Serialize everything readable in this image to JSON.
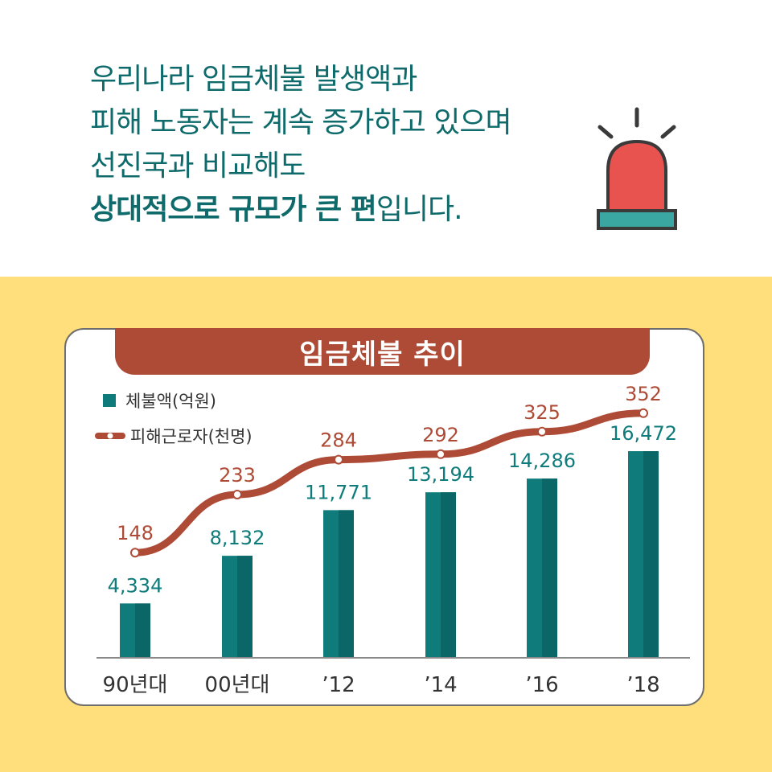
{
  "headline": {
    "line1": "우리나라 임금체불 발생액과",
    "line2": "피해 노동자는 계속 증가하고 있으며",
    "line3": "선진국과 비교해도",
    "line4_bold": "상대적으로 규모가 큰 편",
    "line4_rest": "입니다."
  },
  "icons": {
    "siren": "siren-icon"
  },
  "colors": {
    "headline_text": "#0f6b6b",
    "background_yellow": "#fedf7c",
    "banner": "#ae4b36",
    "bar": "#0f7b7b",
    "bar_dark": "#0b6767",
    "line": "#ae4b36",
    "siren_red": "#e85350",
    "siren_base": "#3a3a3a",
    "siren_teal": "#3aa7a3"
  },
  "chart_data": {
    "type": "bar",
    "title": "임금체불 추이",
    "categories": [
      "90년대",
      "00년대",
      "’12",
      "’14",
      "’16",
      "’18"
    ],
    "legend_placement": "top-left",
    "grid": false,
    "series": [
      {
        "name": "체불액(억원)",
        "type": "bar",
        "values": [
          4334,
          8132,
          11771,
          13194,
          14286,
          16472
        ],
        "labels": [
          "4,334",
          "8,132",
          "11,771",
          "13,194",
          "14,286",
          "16,472"
        ],
        "ylim": [
          0,
          18000
        ]
      },
      {
        "name": "피해근로자(천명)",
        "type": "line",
        "values": [
          148,
          233,
          284,
          292,
          325,
          352
        ],
        "labels": [
          "148",
          "233",
          "284",
          "292",
          "325",
          "352"
        ]
      }
    ]
  }
}
